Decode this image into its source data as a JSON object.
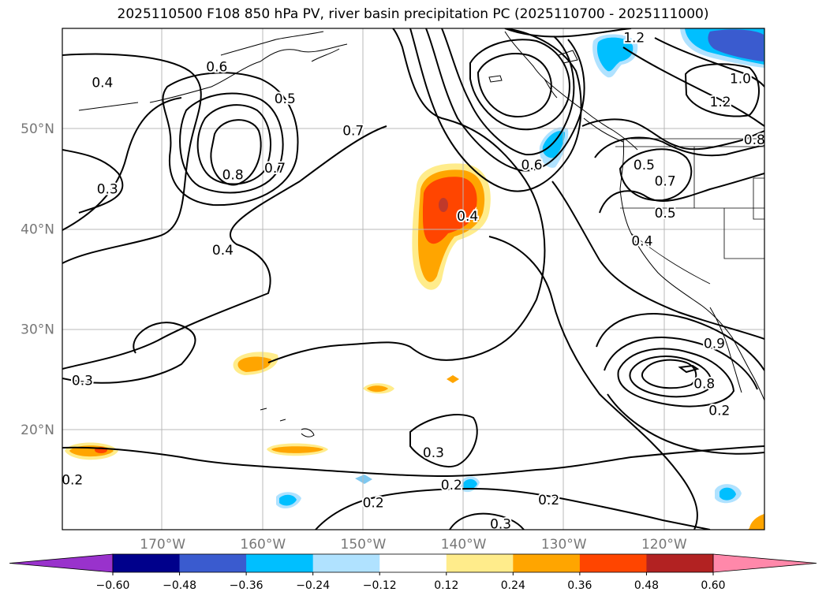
{
  "title": "2025110500 F108 850 hPa PV, river basin precipitation PC (2025110700 - 2025111000)",
  "lat_ticks": [
    {
      "label": "50°N",
      "lat": 50
    },
    {
      "label": "40°N",
      "lat": 40
    },
    {
      "label": "30°N",
      "lat": 30
    },
    {
      "label": "20°N",
      "lat": 20
    }
  ],
  "lon_ticks": [
    {
      "label": "170°W",
      "lon": -170
    },
    {
      "label": "160°W",
      "lon": -160
    },
    {
      "label": "150°W",
      "lon": -150
    },
    {
      "label": "140°W",
      "lon": -140
    },
    {
      "label": "130°W",
      "lon": -130
    },
    {
      "label": "120°W",
      "lon": -120
    }
  ],
  "map_extent": {
    "lon_min": -180,
    "lon_max": -110,
    "lat_min": 10,
    "lat_max": 60
  },
  "contour_labels": [
    {
      "text": "1.2",
      "lon": -123,
      "lat": 59.1
    },
    {
      "text": "1.0",
      "lon": -112.4,
      "lat": 55
    },
    {
      "text": "1.2",
      "lon": -114.4,
      "lat": 52.7
    },
    {
      "text": "0.6",
      "lon": -164.6,
      "lat": 56.2
    },
    {
      "text": "0.5",
      "lon": -157.8,
      "lat": 53
    },
    {
      "text": "0.4",
      "lon": -176,
      "lat": 54.6
    },
    {
      "text": "0.7",
      "lon": -151,
      "lat": 49.8
    },
    {
      "text": "0.8",
      "lon": -111,
      "lat": 48.9
    },
    {
      "text": "0.5",
      "lon": -122,
      "lat": 46.4
    },
    {
      "text": "0.7",
      "lon": -158.8,
      "lat": 46.1
    },
    {
      "text": "0.8",
      "lon": -163,
      "lat": 45.4
    },
    {
      "text": "0.6",
      "lon": -133.2,
      "lat": 46.4
    },
    {
      "text": "0.7",
      "lon": -119.9,
      "lat": 44.8
    },
    {
      "text": "0.3",
      "lon": -175.5,
      "lat": 44
    },
    {
      "text": "0.5",
      "lon": -119.9,
      "lat": 41.6
    },
    {
      "text": "0.4",
      "lon": -139.6,
      "lat": 41.3
    },
    {
      "text": "0.4",
      "lon": -122.2,
      "lat": 38.8
    },
    {
      "text": "0.4",
      "lon": -164,
      "lat": 37.9
    },
    {
      "text": "0.9",
      "lon": -115,
      "lat": 28.6
    },
    {
      "text": "0.8",
      "lon": -116,
      "lat": 24.6
    },
    {
      "text": "0.3",
      "lon": -178,
      "lat": 24.9
    },
    {
      "text": "0.2",
      "lon": -114.5,
      "lat": 21.9
    },
    {
      "text": "0.3",
      "lon": -143,
      "lat": 17.7
    },
    {
      "text": "0.2",
      "lon": -179,
      "lat": 15
    },
    {
      "text": "0.2",
      "lon": -141.2,
      "lat": 14.5
    },
    {
      "text": "0.2",
      "lon": -149,
      "lat": 12.7
    },
    {
      "text": "0.2",
      "lon": -131.5,
      "lat": 13
    },
    {
      "text": "0.3",
      "lon": -136.3,
      "lat": 10.6
    }
  ],
  "colorbar": {
    "colors": [
      "#9932cc",
      "#00008b",
      "#3a5bcf",
      "#00bfff",
      "#b0e2ff",
      "#ffffff",
      "#ffec8b",
      "#ffa500",
      "#ff4500",
      "#b22222",
      "#ff88aa"
    ],
    "tick_labels": [
      "−0.60",
      "−0.48",
      "−0.36",
      "−0.24",
      "−0.12",
      "0.12",
      "0.24",
      "0.36",
      "0.48",
      "0.60"
    ]
  },
  "legend": {
    "land_color": "#ffffff",
    "contour_color": "#000000",
    "grid_color": "#b8b8b8"
  }
}
